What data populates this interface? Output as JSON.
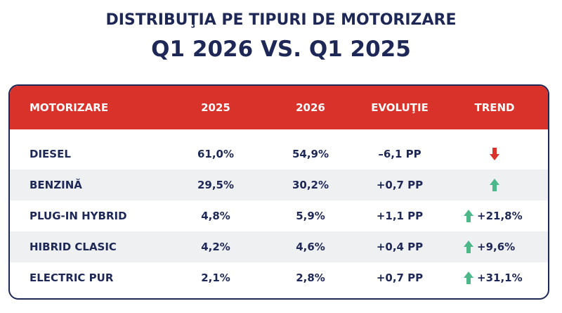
{
  "header": {
    "title": "DISTRIBUŢIA PE TIPURI DE MOTORIZARE",
    "subtitle": "Q1 2026 VS. Q1 2025"
  },
  "table": {
    "columns": [
      "MOTORIZARE",
      "2025",
      "2026",
      "EVOLUŢIE",
      "TREND"
    ],
    "rows": [
      {
        "name": "DIESEL",
        "y2025": "61,0%",
        "y2026": "54,9%",
        "evolution": "–6,1 PP"
      },
      {
        "name": "BENZINĂ",
        "y2025": "29,5%",
        "y2026": "30,2%",
        "evolution": "+0,7 PP"
      },
      {
        "name": "PLUG-IN HYBRID",
        "y2025": "4,8%",
        "y2026": "5,9%",
        "evolution": "+1,1 PP",
        "trend": "+21,8%"
      },
      {
        "name": "HIBRID CLASIC",
        "y2025": "4,2%",
        "y2026": "4,6%",
        "evolution": "+0,4 PP",
        "trend": "+9,6%"
      },
      {
        "name": "ELECTRIC PUR",
        "y2025": "2,1%",
        "y2026": "2,8%",
        "evolution": "+0,7 PP",
        "trend": "+31,1%"
      }
    ]
  }
}
